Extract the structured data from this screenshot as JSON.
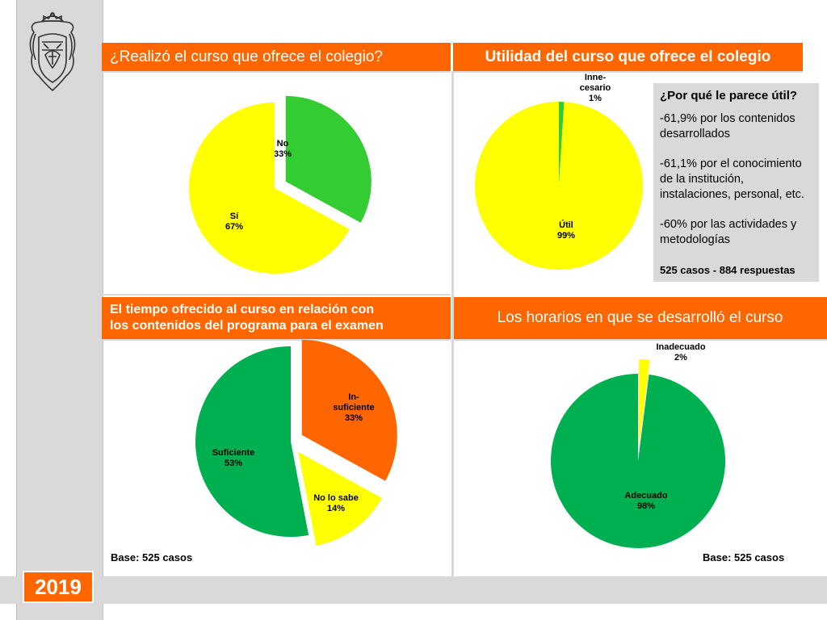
{
  "year": "2019",
  "panels": {
    "q1_title": "¿Realizó el curso que ofrece el colegio?",
    "q2_title": "Utilidad del curso que ofrece el colegio",
    "q3_title_line1": "El tiempo ofrecido al curso en relación con",
    "q3_title_line2": "los contenidos del programa para el examen",
    "q4_title": "Los horarios en que se desarrolló el curso"
  },
  "info_box": {
    "title": "¿Por qué le parece útil?",
    "items": [
      "-61,9% por los contenidos desarrollados",
      "-61,1% por el conocimiento de la institución, instalaciones, personal, etc.",
      "-60% por las actividades y metodologías"
    ],
    "footer": "525 casos - 884 respuestas"
  },
  "base_left": "Base: 525 casos",
  "base_right": "Base: 525 casos",
  "colors": {
    "orange": "#ff6600",
    "yellow": "#ffff00",
    "light_green": "#33cc33",
    "green": "#00b050",
    "gray": "#d9d9d9"
  },
  "chart_data": [
    {
      "type": "pie",
      "title": "¿Realizó el curso que ofrece el colegio?",
      "slices": [
        {
          "label": "No",
          "value": 33,
          "display": "33%",
          "color": "#33cc33",
          "exploded": true
        },
        {
          "label": "Sí",
          "value": 67,
          "display": "67%",
          "color": "#ffff00",
          "exploded": false
        }
      ]
    },
    {
      "type": "pie",
      "title": "Utilidad del curso que ofrece el colegio",
      "slices": [
        {
          "label": "Inne-\ncesario",
          "value": 1,
          "display": "1%",
          "color": "#33cc33",
          "exploded": true
        },
        {
          "label": "Útil",
          "value": 99,
          "display": "99%",
          "color": "#ffff00",
          "exploded": false
        }
      ]
    },
    {
      "type": "pie",
      "title": "El tiempo ofrecido al curso en relación con los contenidos del programa para el examen",
      "slices": [
        {
          "label": "In-\nsuficiente",
          "value": 33,
          "display": "33%",
          "color": "#ff6600",
          "exploded": true
        },
        {
          "label": "No lo sabe",
          "value": 14,
          "display": "14%",
          "color": "#ffff00",
          "exploded": true
        },
        {
          "label": "Suficiente",
          "value": 53,
          "display": "53%",
          "color": "#00b050",
          "exploded": false
        }
      ]
    },
    {
      "type": "pie",
      "title": "Los horarios en que se desarrolló el curso",
      "slices": [
        {
          "label": "Inadecuado",
          "value": 2,
          "display": "2%",
          "color": "#ffff00",
          "exploded": true
        },
        {
          "label": "Adecuado",
          "value": 98,
          "display": "98%",
          "color": "#00b050",
          "exploded": false
        }
      ]
    }
  ]
}
